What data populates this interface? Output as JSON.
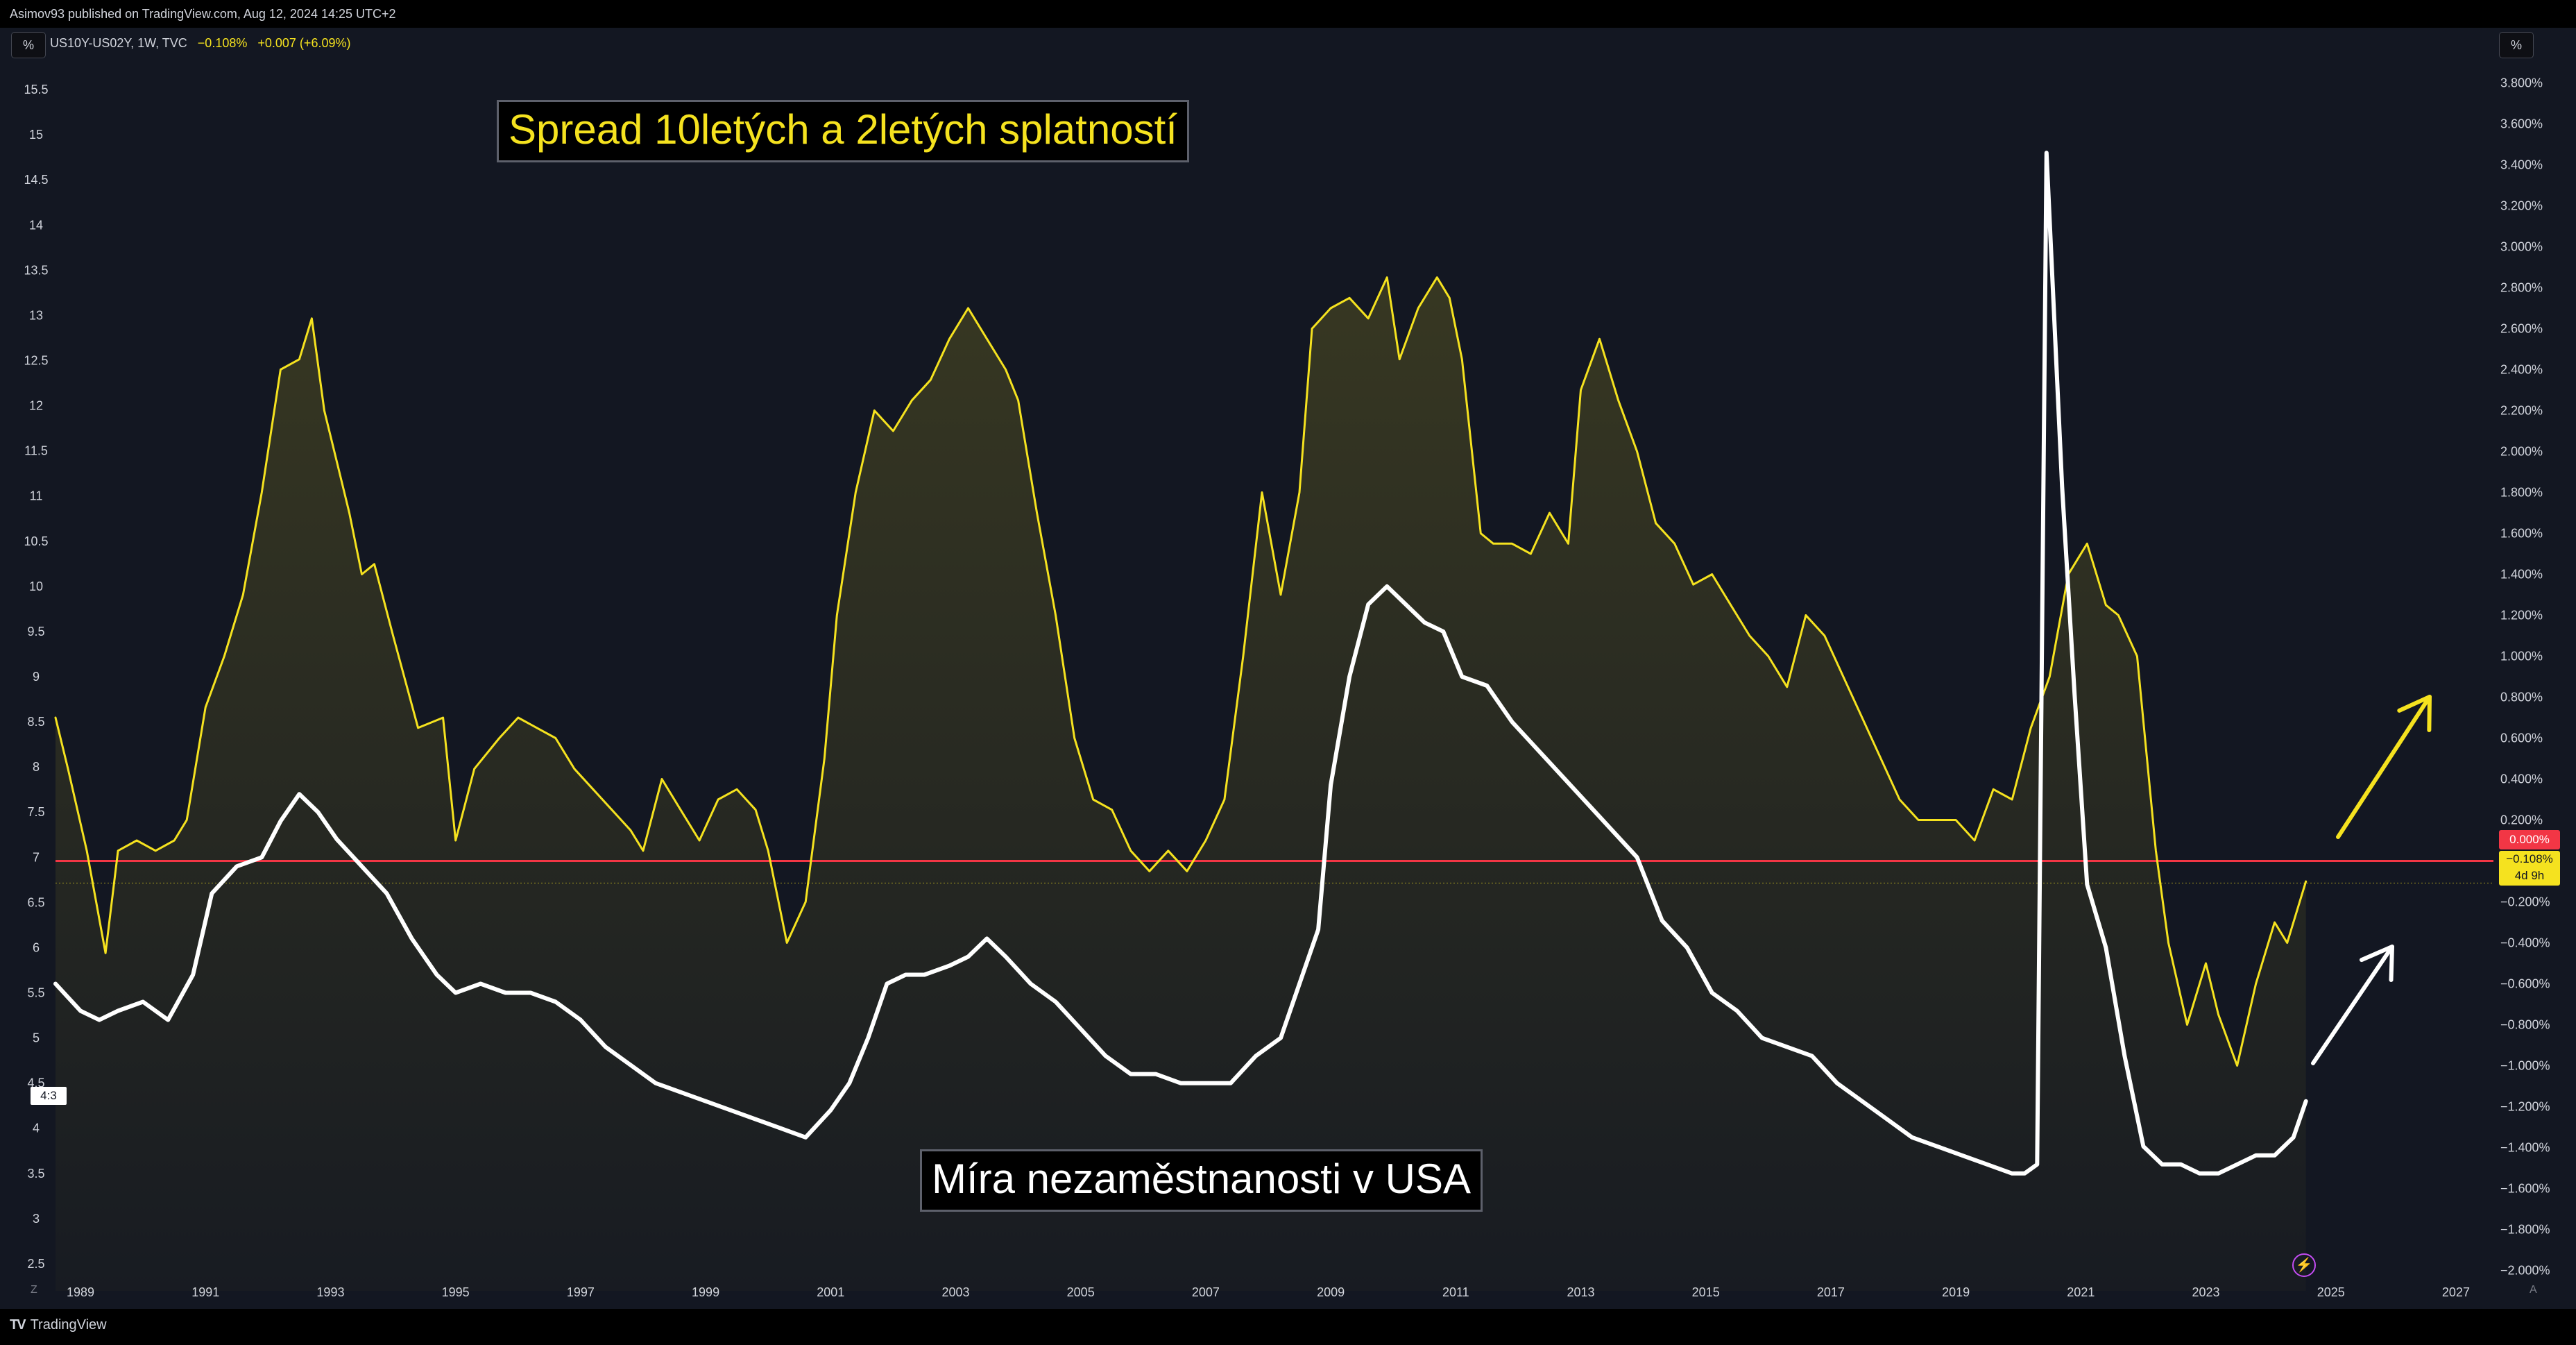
{
  "header": {
    "published": "Asimov93 published on TradingView.com, Aug 12, 2024 14:25 UTC+2",
    "left_unit": "%",
    "right_unit": "%",
    "symbol": "US10Y-US02Y, 1W, TVC",
    "last_value": "−0.108%",
    "change": "+0.007 (+6.09%)"
  },
  "annotations": {
    "spread_title": "Spread 10letých a 2letých splatností",
    "unemployment_title": "Míra nezaměstnanosti v USA"
  },
  "price_labels": {
    "zero_line": "0.000%",
    "current_value": "−0.108%",
    "countdown": "4d 9h",
    "ratio_badge": "4:3"
  },
  "footer": {
    "brand": "TradingView",
    "corner_left": "Z",
    "corner_right": "A"
  },
  "colors": {
    "background": "#131722",
    "spread": "#f5e21f",
    "unemployment": "#ffffff",
    "zero_line": "#f23645",
    "axis_text": "#d1d4dc"
  },
  "icons": {
    "logo": "tradingview-logo-icon",
    "flash": "lightning-icon"
  },
  "chart_data": {
    "type": "line",
    "x_ticks": [
      1989,
      1991,
      1993,
      1995,
      1997,
      1999,
      2001,
      2003,
      2005,
      2007,
      2009,
      2011,
      2013,
      2015,
      2017,
      2019,
      2021,
      2023,
      2025,
      2027
    ],
    "x_range": [
      1988.6,
      2027.6
    ],
    "left_axis": {
      "ticks": [
        "15.5",
        "15",
        "14.5",
        "14",
        "13.5",
        "13",
        "12.5",
        "12",
        "11.5",
        "11",
        "10.5",
        "10",
        "9.5",
        "9",
        "8.5",
        "8",
        "7.5",
        "7",
        "6.5",
        "6",
        "5.5",
        "5",
        "4.5",
        "4",
        "3.5",
        "3",
        "2.5"
      ],
      "range": [
        2.2,
        15.8
      ]
    },
    "right_axis": {
      "ticks": [
        "3.800%",
        "3.600%",
        "3.400%",
        "3.200%",
        "3.000%",
        "2.800%",
        "2.600%",
        "2.400%",
        "2.200%",
        "2.000%",
        "1.800%",
        "1.600%",
        "1.400%",
        "1.200%",
        "1.000%",
        "0.800%",
        "0.600%",
        "0.400%",
        "0.200%",
        "0.000%",
        "−0.200%",
        "−0.400%",
        "−0.600%",
        "−0.800%",
        "−1.000%",
        "−1.200%",
        "−1.400%",
        "−1.600%",
        "−1.800%",
        "−2.000%"
      ],
      "range": [
        -2.1,
        3.9
      ]
    },
    "series": [
      {
        "axis": "right",
        "x": [
          1988.6,
          1988.8,
          1989.1,
          1989.4,
          1989.6,
          1989.9,
          1990.2,
          1990.5,
          1990.7,
          1991.0,
          1991.3,
          1991.6,
          1991.9,
          1992.2,
          1992.5,
          1992.7,
          1992.9,
          1993.1,
          1993.3,
          1993.5,
          1993.7,
          1994.0,
          1994.4,
          1994.8,
          1995.0,
          1995.3,
          1995.7,
          1996.0,
          1996.3,
          1996.6,
          1996.9,
          1997.2,
          1997.5,
          1997.8,
          1998.0,
          1998.3,
          1998.6,
          1998.9,
          1999.2,
          1999.5,
          1999.8,
          2000.0,
          2000.3,
          2000.6,
          2000.9,
          2001.1,
          2001.4,
          2001.7,
          2002.0,
          2002.3,
          2002.6,
          2002.9,
          2003.2,
          2003.5,
          2003.8,
          2004.0,
          2004.3,
          2004.6,
          2004.9,
          2005.2,
          2005.5,
          2005.8,
          2006.1,
          2006.4,
          2006.7,
          2007.0,
          2007.3,
          2007.6,
          2007.9,
          2008.2,
          2008.5,
          2008.7,
          2009.0,
          2009.3,
          2009.6,
          2009.9,
          2010.1,
          2010.4,
          2010.7,
          2010.9,
          2011.1,
          2011.4,
          2011.6,
          2011.9,
          2012.2,
          2012.5,
          2012.8,
          2013.0,
          2013.3,
          2013.6,
          2013.9,
          2014.2,
          2014.5,
          2014.8,
          2015.1,
          2015.4,
          2015.7,
          2016.0,
          2016.3,
          2016.6,
          2016.9,
          2017.2,
          2017.5,
          2017.8,
          2018.1,
          2018.4,
          2018.7,
          2019.0,
          2019.3,
          2019.6,
          2019.9,
          2020.2,
          2020.5,
          2020.8,
          2021.1,
          2021.4,
          2021.6,
          2021.9,
          2022.2,
          2022.4,
          2022.7,
          2023.0,
          2023.2,
          2023.5,
          2023.8,
          2024.1,
          2024.3,
          2024.6
        ],
        "values": [
          0.7,
          0.45,
          0.05,
          -0.45,
          0.05,
          0.1,
          0.05,
          0.1,
          0.2,
          0.75,
          1.0,
          1.3,
          1.8,
          2.4,
          2.45,
          2.65,
          2.2,
          1.95,
          1.7,
          1.4,
          1.45,
          1.1,
          0.65,
          0.7,
          0.1,
          0.45,
          0.6,
          0.7,
          0.65,
          0.6,
          0.45,
          0.35,
          0.25,
          0.15,
          0.05,
          0.4,
          0.25,
          0.1,
          0.3,
          0.35,
          0.25,
          0.05,
          -0.4,
          -0.2,
          0.5,
          1.2,
          1.8,
          2.2,
          2.1,
          2.25,
          2.35,
          2.55,
          2.7,
          2.55,
          2.4,
          2.25,
          1.7,
          1.2,
          0.6,
          0.3,
          0.25,
          0.05,
          -0.05,
          0.05,
          -0.05,
          0.1,
          0.3,
          1.0,
          1.8,
          1.3,
          1.8,
          2.6,
          2.7,
          2.75,
          2.65,
          2.85,
          2.45,
          2.7,
          2.85,
          2.75,
          2.45,
          1.6,
          1.55,
          1.55,
          1.5,
          1.7,
          1.55,
          2.3,
          2.55,
          2.25,
          2.0,
          1.65,
          1.55,
          1.35,
          1.4,
          1.25,
          1.1,
          1.0,
          0.85,
          1.2,
          1.1,
          0.9,
          0.7,
          0.5,
          0.3,
          0.2,
          0.2,
          0.2,
          0.1,
          0.35,
          0.3,
          0.65,
          0.9,
          1.4,
          1.55,
          1.25,
          1.2,
          1.0,
          0.05,
          -0.4,
          -0.8,
          -0.5,
          -0.75,
          -1.0,
          -0.6,
          -0.3,
          -0.4,
          -0.1
        ],
        "id": "spread",
        "color": "#f5e21f"
      },
      {
        "axis": "left",
        "x": [
          1988.6,
          1989.0,
          1989.3,
          1989.6,
          1990.0,
          1990.4,
          1990.8,
          1991.1,
          1991.5,
          1991.9,
          1992.2,
          1992.5,
          1992.8,
          1993.1,
          1993.5,
          1993.9,
          1994.3,
          1994.7,
          1995.0,
          1995.4,
          1995.8,
          1996.2,
          1996.6,
          1997.0,
          1997.4,
          1997.8,
          1998.2,
          1998.6,
          1999.0,
          1999.4,
          1999.8,
          2000.2,
          2000.6,
          2001.0,
          2001.3,
          2001.6,
          2001.9,
          2002.2,
          2002.5,
          2002.9,
          2003.2,
          2003.5,
          2003.8,
          2004.2,
          2004.6,
          2005.0,
          2005.4,
          2005.8,
          2006.2,
          2006.6,
          2007.0,
          2007.4,
          2007.8,
          2008.2,
          2008.5,
          2008.8,
          2009.0,
          2009.3,
          2009.6,
          2009.9,
          2010.2,
          2010.5,
          2010.8,
          2011.1,
          2011.5,
          2011.9,
          2012.3,
          2012.7,
          2013.1,
          2013.5,
          2013.9,
          2014.3,
          2014.7,
          2015.1,
          2015.5,
          2015.9,
          2016.3,
          2016.7,
          2017.1,
          2017.5,
          2017.9,
          2018.3,
          2018.7,
          2019.1,
          2019.5,
          2019.9,
          2020.1,
          2020.3,
          2020.45,
          2020.7,
          2020.9,
          2021.1,
          2021.4,
          2021.7,
          2022.0,
          2022.3,
          2022.6,
          2022.9,
          2023.2,
          2023.5,
          2023.8,
          2024.1,
          2024.4,
          2024.6
        ],
        "values": [
          5.6,
          5.3,
          5.2,
          5.3,
          5.4,
          5.2,
          5.7,
          6.6,
          6.9,
          7.0,
          7.4,
          7.7,
          7.5,
          7.2,
          6.9,
          6.6,
          6.1,
          5.7,
          5.5,
          5.6,
          5.5,
          5.5,
          5.4,
          5.2,
          4.9,
          4.7,
          4.5,
          4.4,
          4.3,
          4.2,
          4.1,
          4.0,
          3.9,
          4.2,
          4.5,
          5.0,
          5.6,
          5.7,
          5.7,
          5.8,
          5.9,
          6.1,
          5.9,
          5.6,
          5.4,
          5.1,
          4.8,
          4.6,
          4.6,
          4.5,
          4.5,
          4.5,
          4.8,
          5.0,
          5.6,
          6.2,
          7.8,
          9.0,
          9.8,
          10.0,
          9.8,
          9.6,
          9.5,
          9.0,
          8.9,
          8.5,
          8.2,
          7.9,
          7.6,
          7.3,
          7.0,
          6.3,
          6.0,
          5.5,
          5.3,
          5.0,
          4.9,
          4.8,
          4.5,
          4.3,
          4.1,
          3.9,
          3.8,
          3.7,
          3.6,
          3.5,
          3.5,
          3.6,
          14.8,
          11.1,
          8.8,
          6.7,
          6.0,
          4.8,
          3.8,
          3.6,
          3.6,
          3.5,
          3.5,
          3.6,
          3.7,
          3.7,
          3.9,
          4.3
        ],
        "id": "unemployment",
        "color": "#ffffff"
      }
    ],
    "zero_line": {
      "axis": "right",
      "value": 0.0,
      "color": "#f23645"
    },
    "current_line": {
      "axis": "right",
      "value": -0.108
    }
  }
}
